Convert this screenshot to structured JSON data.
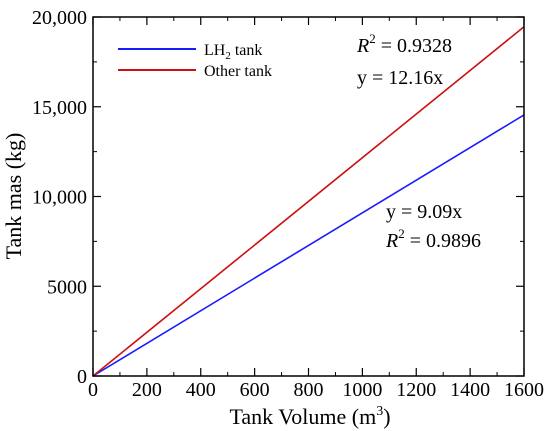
{
  "chart_data": {
    "type": "line",
    "xlabel": "Tank Volume",
    "xlabel_unit": "(m",
    "xlabel_unit_sup": "3",
    "xlabel_unit_close": ")",
    "ylabel": "Tank mas (kg)",
    "xlim": [
      0,
      1600
    ],
    "ylim": [
      0,
      20000
    ],
    "x_ticks": [
      0,
      200,
      400,
      600,
      800,
      1000,
      1200,
      1400,
      1600
    ],
    "x_tick_labels": [
      "0",
      "200",
      "400",
      "600",
      "800",
      "1000",
      "1200",
      "1400",
      "1600"
    ],
    "y_ticks": [
      0,
      5000,
      10000,
      15000,
      20000
    ],
    "y_tick_labels": [
      "0",
      "5000",
      "10,000",
      "15,000",
      "20,000"
    ],
    "grid": false,
    "legend_position": "top-left",
    "series": [
      {
        "name": "LH2 tank",
        "name_main": "LH",
        "name_sub": "2",
        "name_rest": " tank",
        "color": "#1a1aff",
        "x": [
          0,
          1600
        ],
        "y": [
          0,
          14544
        ]
      },
      {
        "name": "Other tank",
        "color": "#cc1111",
        "x": [
          0,
          1600
        ],
        "y": [
          0,
          19456
        ]
      }
    ],
    "annotations": {
      "other_r2_label": "R",
      "other_r2_sup": "2",
      "other_r2_value": " = 0.9328",
      "other_eq": "y = 12.16x",
      "lh2_eq": "y = 9.09x",
      "lh2_r2_label": "R",
      "lh2_r2_sup": "2",
      "lh2_r2_value": " = 0.9896"
    }
  }
}
